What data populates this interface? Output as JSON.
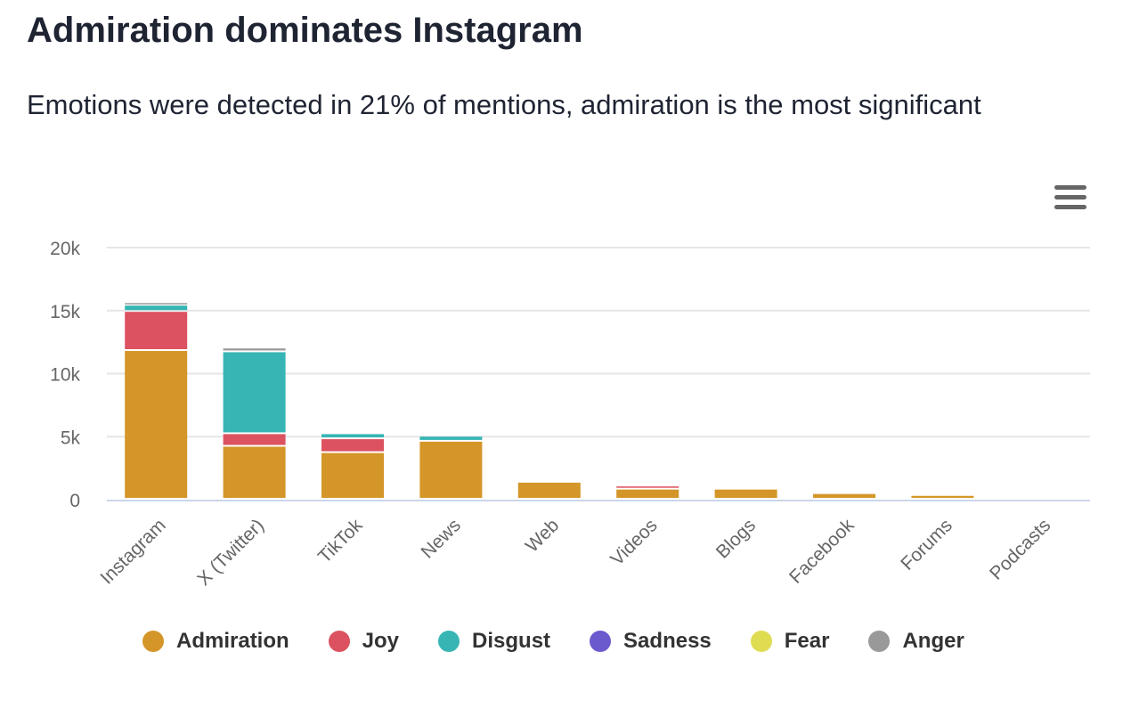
{
  "title": "Admiration dominates Instagram",
  "subtitle": "Emotions were detected in 21% of mentions, admiration is the most significant",
  "menu_icon": "hamburger-menu-icon",
  "chart_data": {
    "type": "bar",
    "stacked": true,
    "categories": [
      "Instagram",
      "X (Twitter)",
      "TikTok",
      "News",
      "Web",
      "Videos",
      "Blogs",
      "Facebook",
      "Forums",
      "Podcasts"
    ],
    "series": [
      {
        "name": "Admiration",
        "color": "#d49628",
        "values": [
          11800,
          4200,
          3700,
          4600,
          1350,
          800,
          800,
          450,
          300,
          0
        ]
      },
      {
        "name": "Joy",
        "color": "#dc5260",
        "values": [
          3100,
          1000,
          1100,
          0,
          0,
          250,
          0,
          0,
          0,
          0
        ]
      },
      {
        "name": "Disgust",
        "color": "#36b5b4",
        "values": [
          500,
          6500,
          400,
          400,
          0,
          0,
          0,
          0,
          0,
          0
        ]
      },
      {
        "name": "Sadness",
        "color": "#6a5acd",
        "values": [
          0,
          0,
          0,
          0,
          0,
          0,
          0,
          0,
          0,
          0
        ]
      },
      {
        "name": "Fear",
        "color": "#e0dc52",
        "values": [
          0,
          0,
          0,
          0,
          0,
          0,
          0,
          0,
          0,
          0
        ]
      },
      {
        "name": "Anger",
        "color": "#999999",
        "values": [
          200,
          300,
          0,
          0,
          0,
          0,
          0,
          0,
          0,
          0
        ]
      }
    ],
    "yticks": [
      "0",
      "5k",
      "10k",
      "15k",
      "20k"
    ],
    "ylim": [
      0,
      20000
    ],
    "grid": true,
    "legend": "bottom"
  }
}
